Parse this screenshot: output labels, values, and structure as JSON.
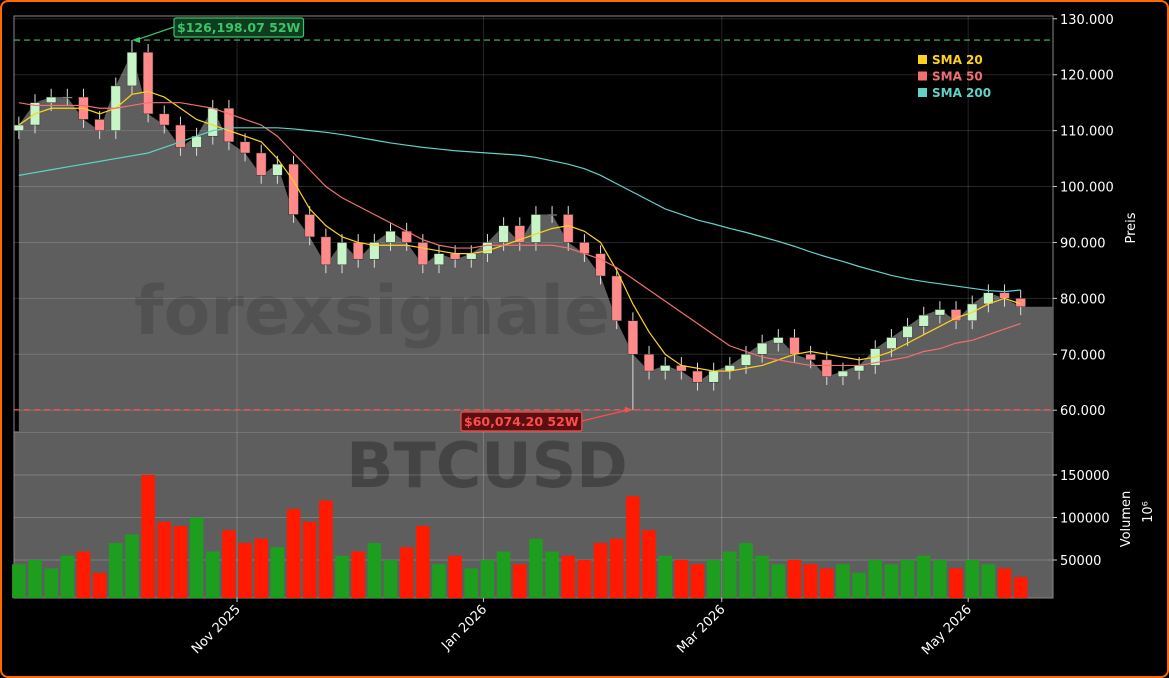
{
  "chart_data": [
    {
      "type": "candlestick",
      "watermark": "forexsignale",
      "symbol": "BTCUSD",
      "ylabel": "Preis",
      "ylim": [
        56100,
        130500
      ],
      "yticks": [
        {
          "value": 60000,
          "label": "60.000"
        },
        {
          "value": 70000,
          "label": "70.000"
        },
        {
          "value": 80000,
          "label": "80.000"
        },
        {
          "value": 90000,
          "label": "90.000"
        },
        {
          "value": 100000,
          "label": "100.000"
        },
        {
          "value": 110000,
          "label": "110.000"
        },
        {
          "value": 120000,
          "label": "120.000"
        },
        {
          "value": 130000,
          "label": "130.000"
        }
      ],
      "xlim": [
        -0.3,
        64.0
      ],
      "xticks": [
        {
          "value": 13.5,
          "label": "Nov 2025"
        },
        {
          "value": 28.75,
          "label": "Jan 2026"
        },
        {
          "value": 43.5,
          "label": "Mar 2026"
        },
        {
          "value": 58.75,
          "label": "May 2026"
        }
      ],
      "grid": true,
      "area_color": "#5e5e5e",
      "up_color": "#c8f5c8",
      "down_color": "#ff8a8a",
      "open": [
        110000,
        111000,
        115000,
        116000,
        116000,
        112000,
        110000,
        118000,
        124000,
        113000,
        111000,
        107000,
        109000,
        114000,
        108000,
        106000,
        102000,
        104000,
        95000,
        91000,
        86000,
        90000,
        87000,
        90000,
        92000,
        90000,
        86000,
        88000,
        87000,
        88000,
        90000,
        93000,
        90000,
        95000,
        95000,
        90000,
        88000,
        84000,
        76000,
        70000,
        67000,
        68000,
        67000,
        65000,
        67000,
        68000,
        70000,
        72000,
        73000,
        70000,
        69000,
        66000,
        67000,
        68000,
        71000,
        73000,
        75000,
        77000,
        78000,
        76000,
        79000,
        81000,
        80000
      ],
      "high": [
        112500,
        116500,
        117500,
        117500,
        117500,
        113500,
        119500,
        126198.07,
        125500,
        114500,
        112500,
        110500,
        115500,
        115500,
        109500,
        107500,
        105500,
        105500,
        96500,
        92500,
        91500,
        91500,
        91500,
        93500,
        93500,
        91500,
        89500,
        89500,
        89500,
        91500,
        94500,
        94500,
        96500,
        96500,
        96500,
        91500,
        89500,
        85500,
        77500,
        71500,
        69500,
        69500,
        68500,
        68500,
        69500,
        71500,
        73500,
        74500,
        74500,
        71500,
        70500,
        68500,
        69500,
        72500,
        74500,
        76500,
        78500,
        79500,
        79500,
        80500,
        82500,
        82500,
        81500
      ],
      "low": [
        108500,
        109500,
        113500,
        114500,
        110500,
        108500,
        108500,
        116500,
        111500,
        109500,
        105500,
        105500,
        107500,
        106500,
        104500,
        100500,
        100500,
        93500,
        89500,
        84500,
        84500,
        85500,
        85500,
        88500,
        88500,
        84500,
        84500,
        85500,
        85500,
        86500,
        88500,
        88500,
        88500,
        93500,
        88500,
        86500,
        82500,
        74500,
        60074.2,
        65500,
        65500,
        65500,
        63500,
        63500,
        65500,
        66500,
        68500,
        70500,
        68500,
        67500,
        64500,
        64500,
        65500,
        66500,
        69500,
        71500,
        73500,
        75500,
        74500,
        74500,
        77500,
        78500,
        77000
      ],
      "close": [
        111000,
        115000,
        116000,
        116000,
        112000,
        110000,
        118000,
        124000,
        113000,
        111000,
        107000,
        109000,
        114000,
        108000,
        106000,
        102000,
        104000,
        95000,
        91000,
        86000,
        90000,
        87000,
        90000,
        92000,
        90000,
        86000,
        88000,
        87000,
        88000,
        90000,
        93000,
        90000,
        95000,
        95000,
        90000,
        88000,
        84000,
        76000,
        70000,
        67000,
        68000,
        67000,
        65000,
        67000,
        68000,
        70000,
        72000,
        73000,
        70000,
        69000,
        66000,
        67000,
        68000,
        71000,
        73000,
        75000,
        77000,
        78000,
        76000,
        79000,
        81000,
        80000,
        78500
      ],
      "series": [
        {
          "name": "SMA 20",
          "color": "#ffd21f",
          "values": [
            111000,
            113000,
            114000,
            114000,
            114000,
            113000,
            114000,
            116500,
            117000,
            116000,
            114000,
            112000,
            111000,
            110000,
            109000,
            108000,
            105000,
            101000,
            96000,
            93000,
            91000,
            90000,
            89500,
            89500,
            89500,
            89000,
            88500,
            88000,
            88000,
            88500,
            89500,
            90500,
            91500,
            92500,
            93000,
            92000,
            90000,
            85000,
            79000,
            74000,
            70000,
            68000,
            67500,
            67000,
            67000,
            67500,
            68000,
            69000,
            70000,
            70500,
            70000,
            69500,
            69000,
            69500,
            70500,
            72000,
            73500,
            75000,
            76500,
            77500,
            79000,
            80000,
            79000
          ]
        },
        {
          "name": "SMA 50",
          "color": "#f07070",
          "values": [
            115000,
            114500,
            114500,
            114500,
            114500,
            114000,
            114000,
            114500,
            115000,
            115000,
            115000,
            114500,
            114000,
            113000,
            112000,
            111000,
            109000,
            106000,
            103000,
            100000,
            98000,
            96500,
            95000,
            93500,
            92000,
            90500,
            89500,
            89000,
            89000,
            89500,
            89500,
            89500,
            89500,
            89500,
            89000,
            88000,
            87000,
            85500,
            83500,
            81500,
            79500,
            77500,
            75500,
            73500,
            71500,
            70500,
            69500,
            69000,
            68500,
            68000,
            68000,
            68000,
            68000,
            68500,
            69000,
            69500,
            70500,
            71000,
            72000,
            72500,
            73500,
            74500,
            75500
          ]
        },
        {
          "name": "SMA 200",
          "color": "#5fd3c8",
          "values": [
            102000,
            102500,
            103000,
            103500,
            104000,
            104500,
            105000,
            105500,
            106000,
            107000,
            108000,
            109000,
            110000,
            110500,
            110500,
            110500,
            110500,
            110300,
            110000,
            109700,
            109300,
            108800,
            108300,
            107800,
            107400,
            107000,
            106700,
            106400,
            106200,
            106000,
            105800,
            105600,
            105200,
            104600,
            104000,
            103200,
            102000,
            100500,
            99000,
            97500,
            96000,
            95000,
            94000,
            93300,
            92500,
            91800,
            91000,
            90200,
            89300,
            88300,
            87400,
            86600,
            85700,
            84900,
            84100,
            83500,
            83000,
            82600,
            82200,
            81800,
            81400,
            81200,
            81500
          ]
        }
      ],
      "high_52w": {
        "value": 126198.07,
        "label": "$126,198.07 52W"
      },
      "low_52w": {
        "value": 60074.2,
        "label": "$60,074.20 52W"
      }
    },
    {
      "type": "bar",
      "ylabel": "Volumen",
      "exponent": "10⁶",
      "ylim": [
        5300,
        200600
      ],
      "yticks": [
        50000,
        100000,
        150000
      ],
      "up_color": "#1e9e1e",
      "down_color": "#ff1a00",
      "values": [
        45000,
        50000,
        40000,
        55000,
        60000,
        35000,
        70000,
        80000,
        150000,
        95000,
        90000,
        100000,
        60000,
        85000,
        70000,
        75000,
        65000,
        110000,
        95000,
        120000,
        55000,
        60000,
        70000,
        50000,
        65000,
        90000,
        45000,
        55000,
        40000,
        50000,
        60000,
        45000,
        75000,
        60000,
        55000,
        50000,
        70000,
        75000,
        125000,
        85000,
        55000,
        50000,
        45000,
        50000,
        60000,
        70000,
        55000,
        45000,
        50000,
        45000,
        40000,
        45000,
        35000,
        50000,
        45000,
        50000,
        55000,
        50000,
        40000,
        50000,
        45000,
        40000,
        30000
      ]
    }
  ]
}
